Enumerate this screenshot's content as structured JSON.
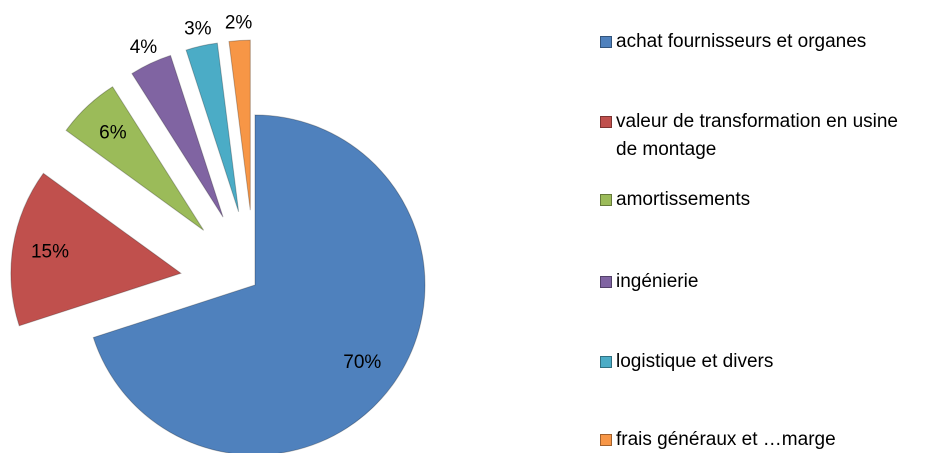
{
  "chart_data": {
    "type": "pie",
    "categories": [
      "achat fournisseurs et organes",
      "valeur de transformation en usine de montage",
      "amortissements",
      "ingénierie",
      "logistique et divers",
      "frais généraux et …marge"
    ],
    "values": [
      70,
      15,
      6,
      4,
      3,
      2
    ],
    "value_labels": [
      "70%",
      "15%",
      "6%",
      "4%",
      "3%",
      "2%"
    ],
    "colors": [
      "#4f81bd",
      "#c0504d",
      "#9bbb59",
      "#8064a2",
      "#4bacc6",
      "#f79646"
    ],
    "legend": "right"
  }
}
